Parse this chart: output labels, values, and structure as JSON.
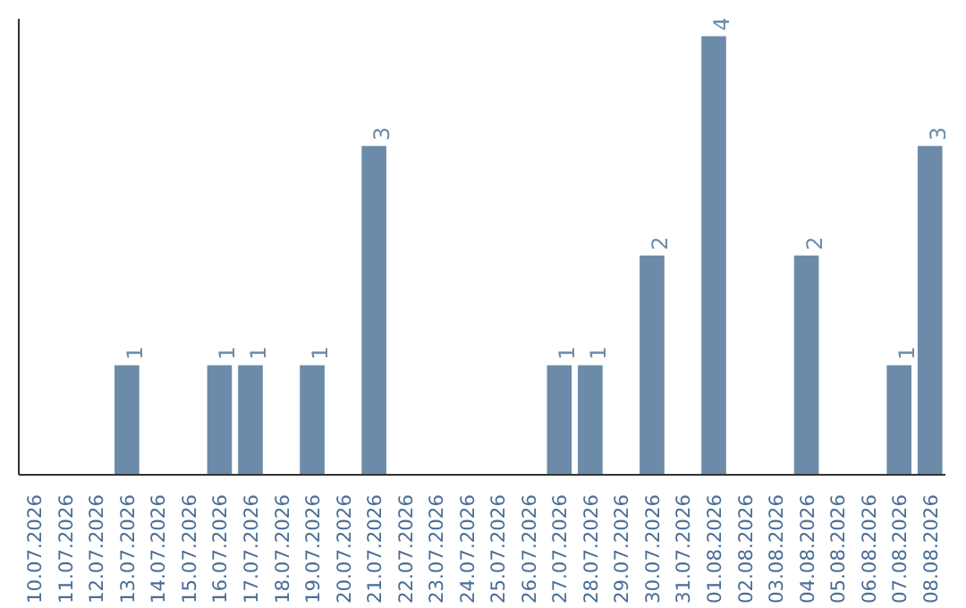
{
  "chart_data": {
    "type": "bar",
    "categories": [
      "10.07.2026",
      "11.07.2026",
      "12.07.2026",
      "13.07.2026",
      "14.07.2026",
      "15.07.2026",
      "16.07.2026",
      "17.07.2026",
      "18.07.2026",
      "19.07.2026",
      "20.07.2026",
      "21.07.2026",
      "22.07.2026",
      "23.07.2026",
      "24.07.2026",
      "25.07.2026",
      "26.07.2026",
      "27.07.2026",
      "28.07.2026",
      "29.07.2026",
      "30.07.2026",
      "31.07.2026",
      "01.08.2026",
      "02.08.2026",
      "03.08.2026",
      "04.08.2026",
      "05.08.2026",
      "06.08.2026",
      "07.08.2026",
      "08.08.2026"
    ],
    "values": [
      0,
      0,
      0,
      1,
      0,
      0,
      1,
      1,
      0,
      1,
      0,
      3,
      0,
      0,
      0,
      0,
      0,
      1,
      1,
      0,
      2,
      0,
      4,
      0,
      0,
      2,
      0,
      0,
      1,
      3
    ],
    "value_labels": [
      null,
      null,
      null,
      "1",
      null,
      null,
      "1",
      "1",
      null,
      "1",
      null,
      "3",
      null,
      null,
      null,
      null,
      null,
      "1",
      "1",
      null,
      "2",
      null,
      "4",
      null,
      null,
      "2",
      null,
      null,
      "1",
      "3"
    ],
    "color": "#6b8ba8",
    "tick_labels": "x",
    "grid": false
  }
}
